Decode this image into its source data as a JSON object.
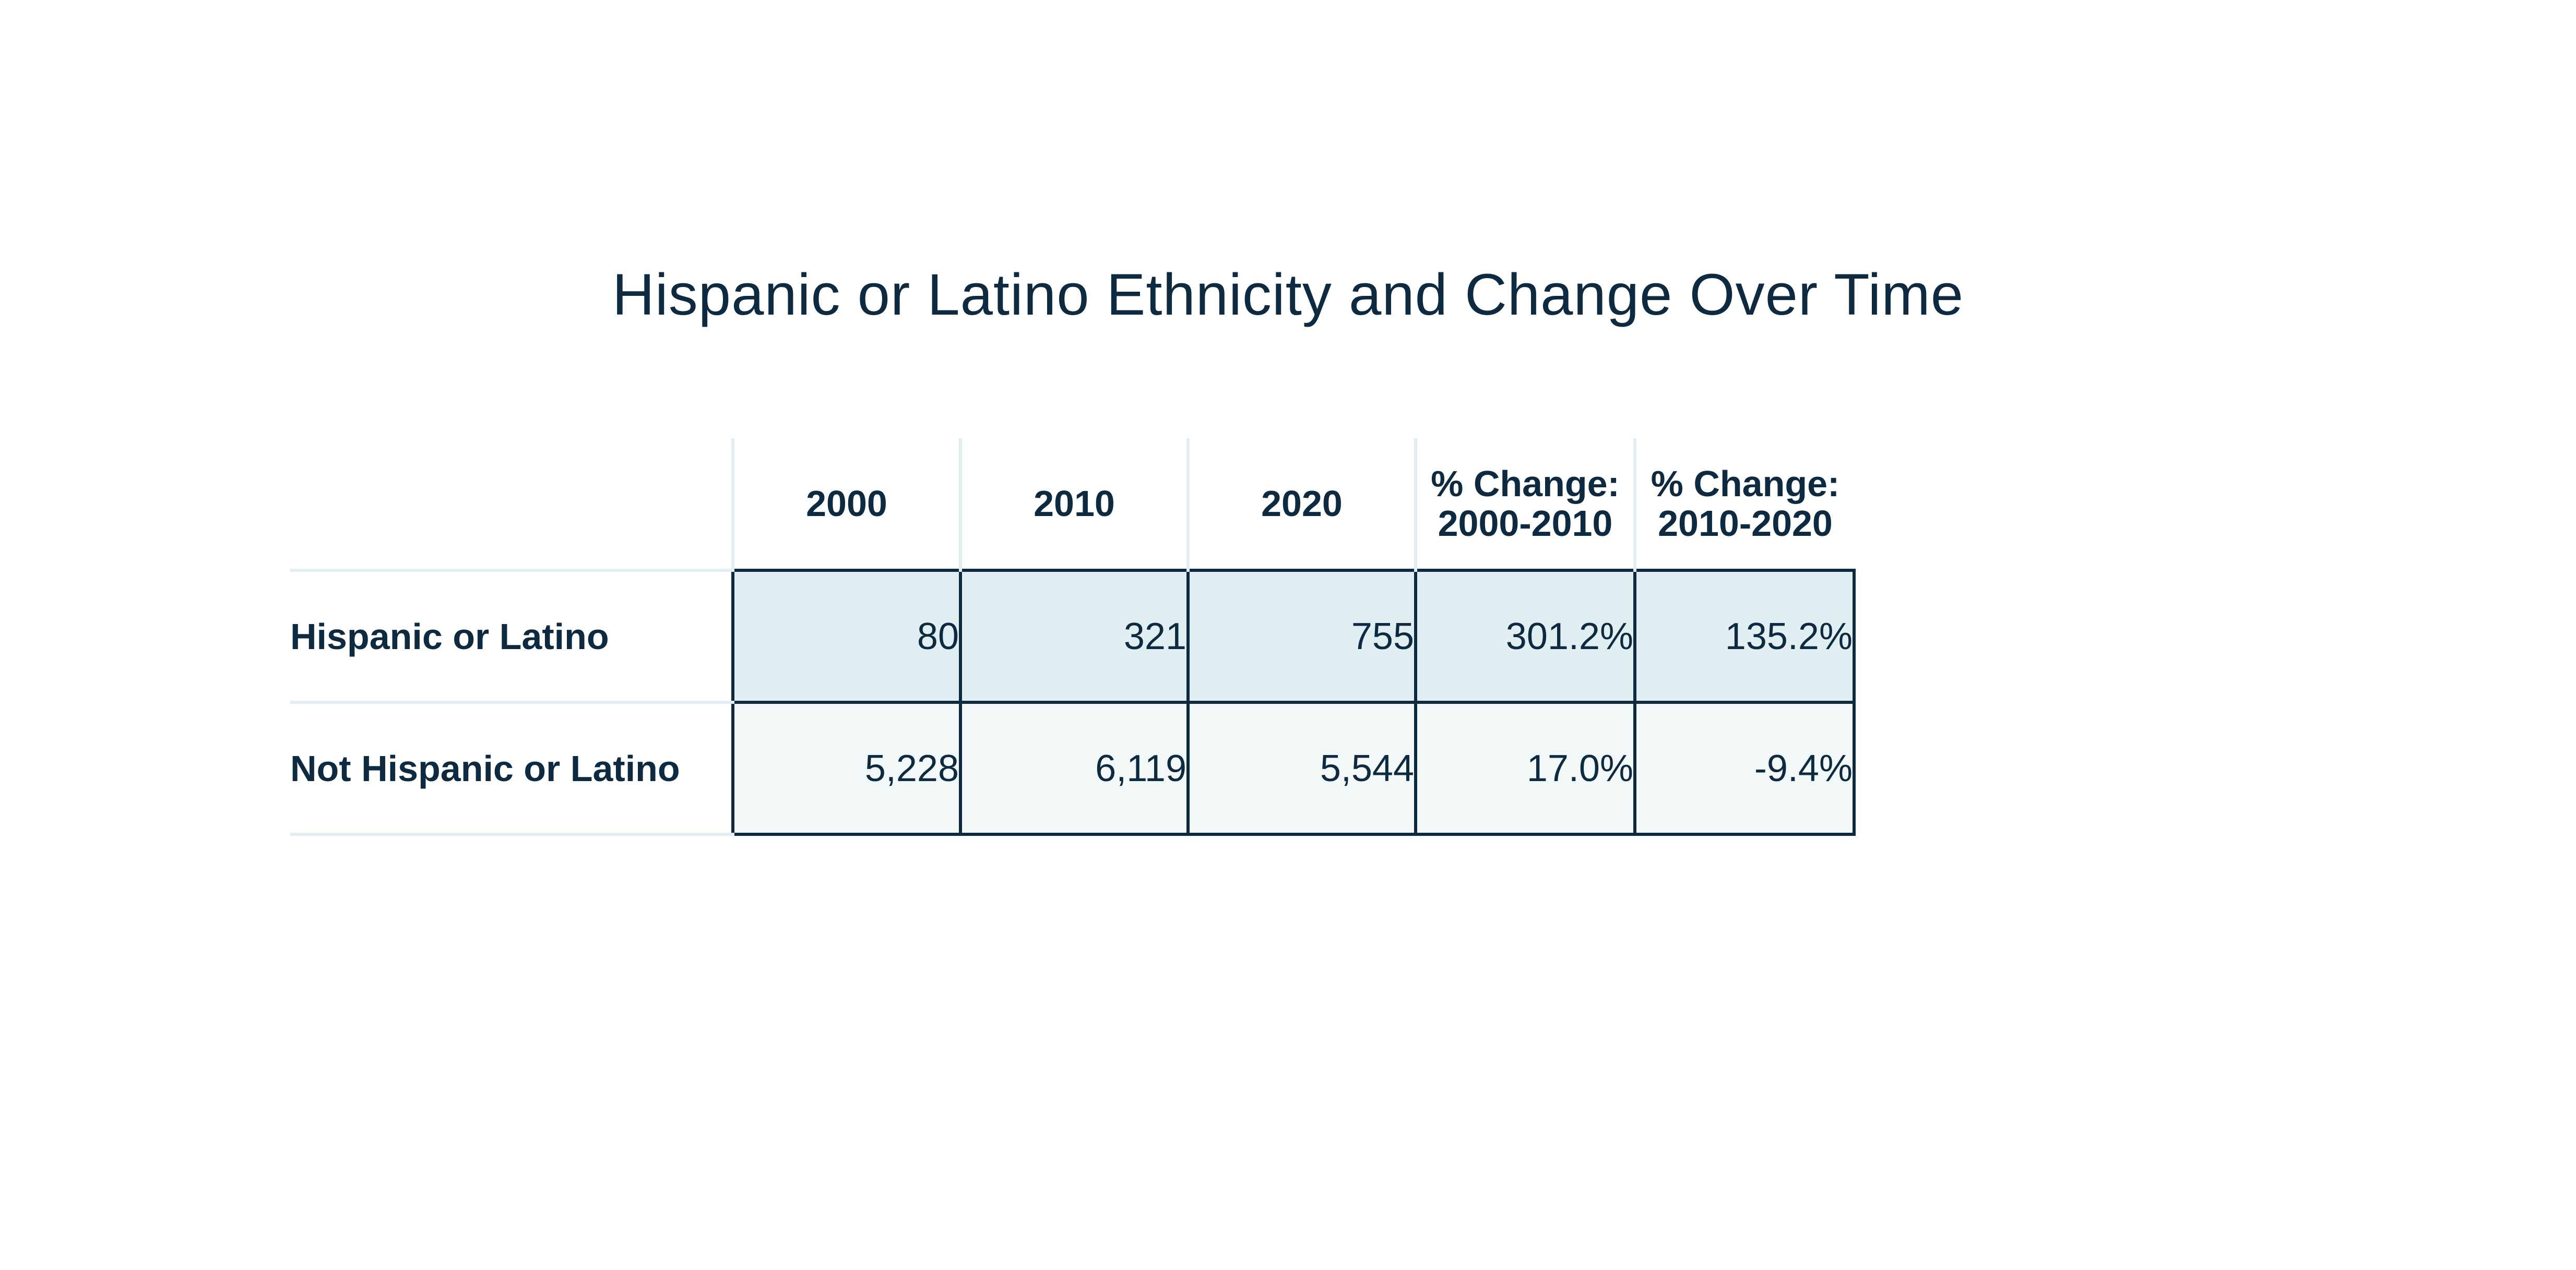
{
  "chart_data": {
    "type": "table",
    "title": "Hispanic or Latino Ethnicity and Change Over Time",
    "columns": [
      "2000",
      "2010",
      "2020",
      "% Change:\n2000-2010",
      "% Change:\n2010-2020"
    ],
    "rows": [
      {
        "label": "Hispanic or Latino",
        "values": [
          "80",
          "321",
          "755",
          "301.2%",
          "135.2%"
        ]
      },
      {
        "label": "Not Hispanic or Latino",
        "values": [
          "5,228",
          "6,119",
          "5,544",
          "17.0%",
          "-9.4%"
        ]
      }
    ],
    "numeric_rows": [
      {
        "label": "Hispanic or Latino",
        "2000": 80,
        "2010": 321,
        "2020": 755,
        "pct_2000_2010": 301.2,
        "pct_2010_2020": 135.2
      },
      {
        "label": "Not Hispanic or Latino",
        "2000": 5228,
        "2010": 6119,
        "2020": 5544,
        "pct_2000_2010": 17.0,
        "pct_2010_2020": -9.4
      }
    ]
  },
  "colors": {
    "text": "#0d2a40",
    "row1_fill": "#e1eef2",
    "row2_fill": "#f2f8f8",
    "light_rule": "#e3eef2",
    "cell_border": "#0d2a40"
  }
}
